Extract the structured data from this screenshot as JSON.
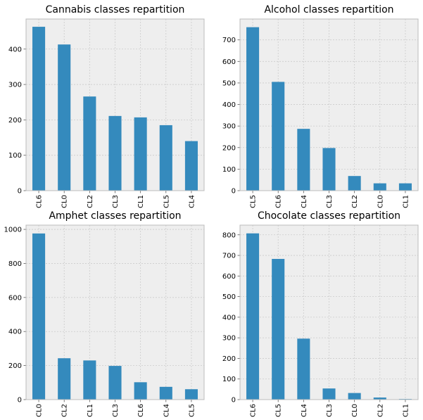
{
  "chart_data": [
    {
      "type": "bar",
      "title": "Cannabis classes repartition",
      "categories": [
        "CL6",
        "CL0",
        "CL2",
        "CL3",
        "CL1",
        "CL5",
        "CL4"
      ],
      "values": [
        463,
        413,
        266,
        211,
        207,
        185,
        140
      ],
      "ylim": [
        0,
        485
      ],
      "yticks": [
        0,
        100,
        200,
        300,
        400
      ],
      "grid": true,
      "color": "#348abd"
    },
    {
      "type": "bar",
      "title": "Alcohol classes repartition",
      "categories": [
        "CL5",
        "CL6",
        "CL4",
        "CL3",
        "CL2",
        "CL0",
        "CL1"
      ],
      "values": [
        759,
        505,
        287,
        198,
        68,
        34,
        34
      ],
      "ylim": [
        0,
        797
      ],
      "yticks": [
        0,
        100,
        200,
        300,
        400,
        500,
        600,
        700
      ],
      "grid": true,
      "color": "#348abd"
    },
    {
      "type": "bar",
      "title": "Amphet classes repartition",
      "categories": [
        "CL0",
        "CL2",
        "CL1",
        "CL3",
        "CL6",
        "CL4",
        "CL5"
      ],
      "values": [
        976,
        243,
        230,
        198,
        102,
        75,
        61
      ],
      "ylim": [
        0,
        1025
      ],
      "yticks": [
        0,
        200,
        400,
        600,
        800,
        1000
      ],
      "grid": true,
      "color": "#348abd"
    },
    {
      "type": "bar",
      "title": "Chocolate classes repartition",
      "categories": [
        "CL6",
        "CL5",
        "CL4",
        "CL3",
        "CL0",
        "CL2",
        "CL1"
      ],
      "values": [
        807,
        683,
        296,
        54,
        32,
        10,
        3
      ],
      "ylim": [
        0,
        847
      ],
      "yticks": [
        0,
        100,
        200,
        300,
        400,
        500,
        600,
        700,
        800
      ],
      "grid": true,
      "color": "#348abd"
    }
  ]
}
